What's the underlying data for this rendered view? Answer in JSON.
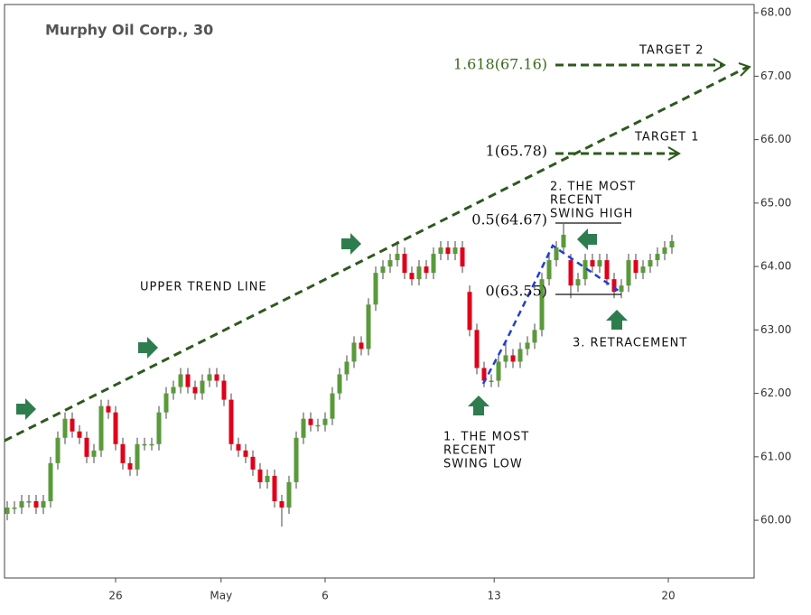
{
  "chart_data": {
    "type": "candlestick",
    "title": "Murphy Oil Corp., 30",
    "x": [
      0,
      1,
      2,
      3,
      4,
      5,
      6,
      7,
      8,
      9,
      10,
      11,
      12,
      13,
      14,
      15,
      16,
      17,
      18,
      19,
      20,
      21,
      22,
      23,
      24,
      25,
      26,
      27,
      28,
      29,
      30,
      31,
      32,
      33,
      34,
      35,
      36,
      37,
      38,
      39,
      40,
      41,
      42,
      43,
      44,
      45,
      46,
      47,
      48,
      49,
      50,
      51,
      52,
      53,
      54,
      55,
      56,
      57,
      58,
      59,
      60,
      61,
      62,
      63,
      64,
      65,
      66,
      67,
      68,
      69,
      70,
      71,
      72,
      73,
      74,
      75,
      76,
      77,
      78,
      79,
      80,
      81,
      82,
      83,
      84,
      85,
      86,
      87,
      88,
      89,
      90,
      91,
      92
    ],
    "open": [
      60.1,
      60.2,
      60.2,
      60.3,
      60.3,
      60.2,
      60.3,
      60.9,
      61.3,
      61.6,
      61.4,
      61.3,
      61.0,
      61.1,
      61.8,
      61.7,
      61.2,
      60.9,
      60.8,
      61.2,
      61.2,
      61.2,
      61.7,
      62.0,
      62.1,
      62.3,
      62.1,
      62.0,
      62.2,
      62.3,
      62.2,
      61.9,
      61.2,
      61.1,
      61.0,
      60.8,
      60.6,
      60.7,
      60.3,
      60.2,
      60.6,
      61.3,
      61.6,
      61.5,
      61.5,
      61.6,
      62.0,
      62.3,
      62.5,
      62.8,
      62.7,
      63.4,
      63.9,
      64.0,
      64.1,
      64.2,
      63.9,
      63.8,
      64.0,
      63.9,
      64.2,
      64.3,
      64.2,
      64.3,
      63.6,
      63.0,
      62.4,
      62.2,
      62.2,
      62.5,
      62.6,
      62.5,
      62.7,
      62.8,
      63.0,
      63.8,
      64.1,
      64.3,
      64.1,
      63.7,
      63.8,
      64.1,
      64.0,
      64.1,
      63.8,
      63.6,
      63.7,
      64.1,
      63.9,
      64.0,
      64.1,
      64.2,
      64.3
    ],
    "high": [
      60.3,
      60.3,
      60.4,
      60.4,
      60.4,
      60.4,
      61.0,
      61.4,
      61.7,
      61.7,
      61.5,
      61.4,
      61.2,
      61.9,
      61.9,
      61.8,
      61.3,
      61.0,
      61.3,
      61.3,
      61.3,
      61.8,
      62.1,
      62.2,
      62.4,
      62.4,
      62.2,
      62.3,
      62.4,
      62.4,
      62.3,
      62.0,
      61.3,
      61.2,
      61.1,
      60.9,
      60.8,
      60.8,
      60.4,
      60.7,
      61.4,
      61.7,
      61.7,
      61.6,
      61.7,
      62.1,
      62.4,
      62.6,
      62.9,
      62.9,
      63.5,
      64.0,
      64.1,
      64.2,
      64.4,
      64.3,
      64.0,
      64.1,
      64.1,
      64.3,
      64.4,
      64.4,
      64.4,
      64.4,
      63.7,
      63.1,
      62.5,
      62.3,
      62.6,
      62.8,
      62.7,
      62.8,
      62.9,
      63.1,
      63.9,
      64.2,
      64.4,
      64.67,
      64.2,
      63.9,
      64.2,
      64.2,
      64.2,
      64.2,
      63.9,
      63.8,
      64.2,
      64.2,
      64.1,
      64.2,
      64.3,
      64.4,
      64.5
    ],
    "low": [
      60.0,
      60.1,
      60.1,
      60.2,
      60.1,
      60.1,
      60.2,
      60.8,
      61.2,
      61.3,
      61.2,
      60.9,
      60.9,
      61.0,
      61.6,
      61.1,
      60.8,
      60.7,
      60.7,
      61.1,
      61.1,
      61.1,
      61.6,
      61.9,
      62.0,
      62.0,
      61.9,
      61.9,
      62.1,
      62.1,
      61.8,
      61.1,
      61.0,
      60.9,
      60.7,
      60.5,
      60.5,
      60.2,
      59.9,
      60.1,
      60.5,
      61.2,
      61.4,
      61.4,
      61.4,
      61.5,
      61.9,
      62.2,
      62.4,
      62.6,
      62.6,
      63.3,
      63.8,
      63.9,
      64.0,
      63.8,
      63.7,
      63.7,
      63.8,
      63.8,
      64.1,
      64.1,
      64.1,
      63.9,
      62.9,
      62.3,
      62.1,
      62.1,
      62.1,
      62.4,
      62.4,
      62.4,
      62.6,
      62.7,
      62.9,
      63.7,
      64.0,
      64.2,
      63.5,
      63.6,
      63.7,
      63.9,
      63.9,
      63.7,
      63.5,
      63.5,
      63.6,
      63.8,
      63.8,
      63.9,
      64.0,
      64.1,
      64.2
    ],
    "close": [
      60.2,
      60.2,
      60.3,
      60.3,
      60.2,
      60.3,
      60.9,
      61.3,
      61.6,
      61.4,
      61.3,
      61.0,
      61.1,
      61.8,
      61.7,
      61.2,
      60.9,
      60.8,
      61.2,
      61.2,
      61.2,
      61.7,
      62.0,
      62.1,
      62.3,
      62.1,
      62.0,
      62.2,
      62.3,
      62.2,
      61.9,
      61.2,
      61.1,
      61.0,
      60.8,
      60.6,
      60.7,
      60.3,
      60.2,
      60.6,
      61.3,
      61.6,
      61.5,
      61.5,
      61.6,
      62.0,
      62.3,
      62.5,
      62.8,
      62.7,
      63.4,
      63.9,
      64.0,
      64.1,
      64.2,
      63.9,
      63.8,
      64.0,
      63.9,
      64.2,
      64.3,
      64.2,
      64.3,
      64.0,
      63.0,
      62.4,
      62.2,
      62.2,
      62.5,
      62.6,
      62.5,
      62.7,
      62.8,
      63.0,
      63.8,
      64.1,
      64.3,
      64.5,
      63.7,
      63.8,
      64.1,
      64.0,
      64.1,
      63.8,
      63.6,
      63.7,
      64.1,
      63.9,
      64.0,
      64.1,
      64.2,
      64.3,
      64.4
    ],
    "up_color": "#5a9a3a",
    "down_color": "#e0001a",
    "xlim": [
      -0.375,
      103.375
    ],
    "xticks": [
      {
        "value": 15,
        "label": "26"
      },
      {
        "value": 29.6,
        "label": "May"
      },
      {
        "value": 44,
        "label": "6"
      },
      {
        "value": 67.4,
        "label": "13"
      },
      {
        "value": 91.5,
        "label": "20"
      }
    ],
    "ylim": [
      59.09,
      68.13
    ],
    "yticks": [
      {
        "value": 60,
        "label": "60.00"
      },
      {
        "value": 61,
        "label": "61.00"
      },
      {
        "value": 62,
        "label": "62.00"
      },
      {
        "value": 63,
        "label": "63.00"
      },
      {
        "value": 64,
        "label": "64.00"
      },
      {
        "value": 65,
        "label": "65.00"
      },
      {
        "value": 66,
        "label": "66.00"
      },
      {
        "value": 67,
        "label": "67.00"
      },
      {
        "value": 68,
        "label": "68.00"
      }
    ],
    "annotations": {
      "upper_trend_line": "UPPER TREND LINE",
      "target_2": "TARGET 2",
      "target_1": "TARGET 1",
      "fib_1618": "1.618(67.16)",
      "fib_1": "1(65.78)",
      "fib_05": "0.5(64.67)",
      "fib_0": "0(63.55)",
      "swing_high": [
        "2. THE MOST",
        "RECENT",
        "SWING HIGH"
      ],
      "swing_low": [
        "1. THE MOST",
        "RECENT",
        "SWING LOW"
      ],
      "retracement": "3. RETRACEMENT"
    }
  }
}
